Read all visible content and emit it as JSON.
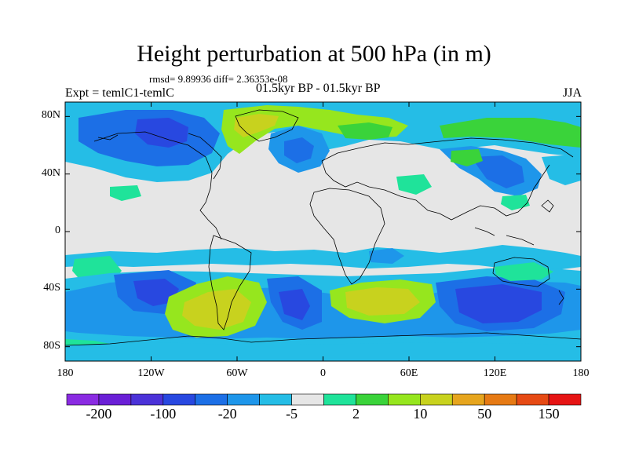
{
  "title": "Height perturbation at 500 hPa (in m)",
  "stats": "rmsd= 9.89936  diff= 2.36353e-08",
  "expt_label": "Expt = temlC1-temlC",
  "period_label": "01.5kyr BP - 01.5kyr BP",
  "season_label": "JJA",
  "axes": {
    "y_ticks": [
      {
        "value": 80,
        "label": "80N"
      },
      {
        "value": 40,
        "label": "40N"
      },
      {
        "value": 0,
        "label": "0"
      },
      {
        "value": -40,
        "label": "40S"
      },
      {
        "value": -80,
        "label": "80S"
      }
    ],
    "x_ticks": [
      {
        "value": -180,
        "label": "180"
      },
      {
        "value": -120,
        "label": "120W"
      },
      {
        "value": -60,
        "label": "60W"
      },
      {
        "value": 0,
        "label": "0"
      },
      {
        "value": 60,
        "label": "60E"
      },
      {
        "value": 120,
        "label": "120E"
      },
      {
        "value": 180,
        "label": "180"
      }
    ],
    "lon_range": [
      -180,
      180
    ],
    "lat_range": [
      -90,
      90
    ]
  },
  "colorbar": {
    "colors": [
      "#8a2be2",
      "#6a1fd6",
      "#4b32d8",
      "#2848e0",
      "#1c6fe6",
      "#1e96ea",
      "#25bde6",
      "#e6e6e6",
      "#1fe39a",
      "#3ad33a",
      "#96e61e",
      "#c8d21e",
      "#e6a51e",
      "#e67a14",
      "#e64a14",
      "#e61414"
    ],
    "labels": [
      {
        "index": 1,
        "text": "-200"
      },
      {
        "index": 3,
        "text": "-100"
      },
      {
        "index": 5,
        "text": "-20"
      },
      {
        "index": 7,
        "text": "-5"
      },
      {
        "index": 9,
        "text": "2"
      },
      {
        "index": 11,
        "text": "10"
      },
      {
        "index": 13,
        "text": "50"
      },
      {
        "index": 15,
        "text": "150"
      }
    ]
  },
  "colors": {
    "deep_blue": "#2848e0",
    "blue": "#1c6fe6",
    "light_blue": "#1e96ea",
    "cyan": "#25bde6",
    "neutral": "#e6e6e6",
    "teal_green": "#1fe39a",
    "green": "#3ad33a",
    "yellow_green": "#96e61e",
    "olive": "#c8d21e"
  }
}
